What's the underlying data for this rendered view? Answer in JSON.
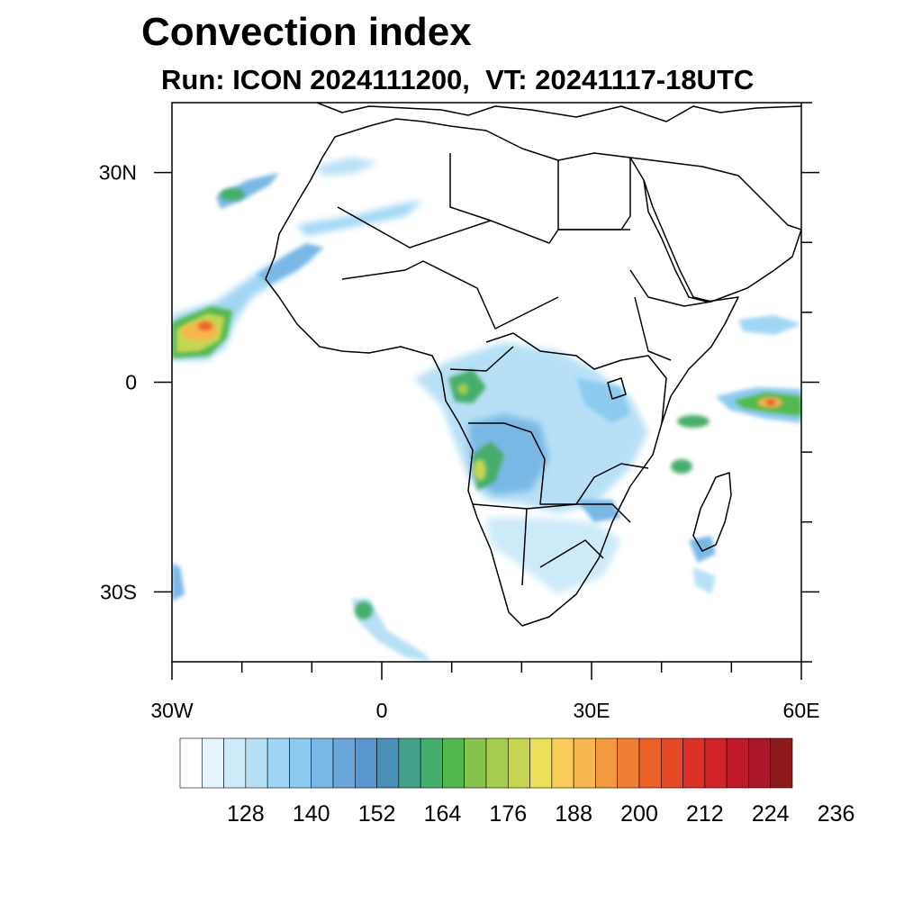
{
  "title": "Convection index",
  "subtitle": "Run: ICON 2024111200,  VT: 20241117-18UTC",
  "map": {
    "projection": "cylindrical-equidistant",
    "lon_range": [
      -30,
      60
    ],
    "lat_range": [
      -40,
      40
    ],
    "lon_ticks": [
      {
        "value": -30,
        "label": "30W"
      },
      {
        "value": 0,
        "label": "0"
      },
      {
        "value": 30,
        "label": "30E"
      },
      {
        "value": 60,
        "label": "60E"
      }
    ],
    "lat_ticks": [
      {
        "value": 30,
        "label": "30N"
      },
      {
        "value": 0,
        "label": "0"
      },
      {
        "value": -30,
        "label": "30S"
      }
    ],
    "convection_areas": [
      {
        "name": "atlantic-west-africa-band",
        "lon": -26,
        "lat": 7,
        "peak": 196
      },
      {
        "name": "canary-band",
        "lon": -22,
        "lat": 27,
        "peak": 162
      },
      {
        "name": "congo-basin",
        "lon": 15,
        "lat": -8,
        "peak": 172
      },
      {
        "name": "gabon-cluster",
        "lon": 12,
        "lat": 1,
        "peak": 176
      },
      {
        "name": "indian-ocean-east",
        "lon": 55,
        "lat": -3,
        "peak": 204
      },
      {
        "name": "madagascar-cluster",
        "lon": 42,
        "lat": -7,
        "peak": 168
      },
      {
        "name": "south-atlantic-streak",
        "lon": -4,
        "lat": -34,
        "peak": 166
      }
    ]
  },
  "colorbar": {
    "colors": [
      "#ffffff",
      "#e6f5fd",
      "#cdeaf9",
      "#b7e0f6",
      "#a0d6f4",
      "#8ccaf0",
      "#79b8e5",
      "#6aa6da",
      "#5896cf",
      "#4a8fb5",
      "#45a08a",
      "#46ad6c",
      "#52b84d",
      "#86c34d",
      "#a8cc50",
      "#c8d552",
      "#ece05a",
      "#f8cc58",
      "#f6b64d",
      "#f39a3f",
      "#ef7f33",
      "#eb6229",
      "#e44a26",
      "#dc3127",
      "#d0232a",
      "#be1a2a",
      "#a8172a",
      "#8e1a1e"
    ],
    "labels": [
      "128",
      "140",
      "152",
      "164",
      "176",
      "188",
      "200",
      "212",
      "224",
      "236"
    ]
  }
}
